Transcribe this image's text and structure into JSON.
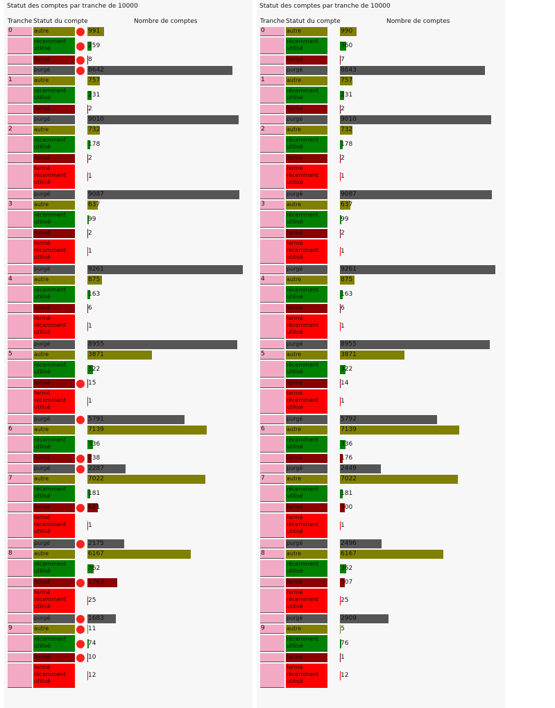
{
  "colors": {
    "autre": "#808000",
    "recemment_utilise": "#008000",
    "ferme": "#8b0000",
    "ferme_recemment_utilise": "#ff0000",
    "purge": "#555555",
    "tranche_cell": "#f2a9c4",
    "marker": "#ff2020"
  },
  "chart_data": [
    {
      "type": "bar",
      "title": "Statut des comptes par tranche de 10000",
      "columns": [
        "Tranche",
        "Statut du compte",
        "Nombre de comptes"
      ],
      "rows": [
        {
          "tranche": "0",
          "statut": "autre",
          "count": 991,
          "marked": true
        },
        {
          "tranche": "0",
          "statut": "récemment utilisé",
          "count": 259,
          "marked": true
        },
        {
          "tranche": "0",
          "statut": "fermé",
          "count": 8,
          "marked": true
        },
        {
          "tranche": "0",
          "statut": "purgé",
          "count": 8642,
          "marked": true
        },
        {
          "tranche": "1",
          "statut": "autre",
          "count": 757
        },
        {
          "tranche": "1",
          "statut": "récemment utilisé",
          "count": 231
        },
        {
          "tranche": "1",
          "statut": "fermé",
          "count": 2
        },
        {
          "tranche": "1",
          "statut": "purgé",
          "count": 9010
        },
        {
          "tranche": "2",
          "statut": "autre",
          "count": 732
        },
        {
          "tranche": "2",
          "statut": "récemment utilisé",
          "count": 178
        },
        {
          "tranche": "2",
          "statut": "fermé",
          "count": 2
        },
        {
          "tranche": "2",
          "statut": "fermé récemment utilisé",
          "count": 1
        },
        {
          "tranche": "2",
          "statut": "purgé",
          "count": 9087
        },
        {
          "tranche": "3",
          "statut": "autre",
          "count": 637
        },
        {
          "tranche": "3",
          "statut": "récemment utilisé",
          "count": 99
        },
        {
          "tranche": "3",
          "statut": "fermé",
          "count": 2
        },
        {
          "tranche": "3",
          "statut": "fermé récemment utilisé",
          "count": 1
        },
        {
          "tranche": "3",
          "statut": "purgé",
          "count": 9261
        },
        {
          "tranche": "4",
          "statut": "autre",
          "count": 875
        },
        {
          "tranche": "4",
          "statut": "récemment utilisé",
          "count": 163
        },
        {
          "tranche": "4",
          "statut": "fermé",
          "count": 6
        },
        {
          "tranche": "4",
          "statut": "fermé récemment utilisé",
          "count": 1
        },
        {
          "tranche": "4",
          "statut": "purgé",
          "count": 8955
        },
        {
          "tranche": "5",
          "statut": "autre",
          "count": 3871
        },
        {
          "tranche": "5",
          "statut": "récemment utilisé",
          "count": 322
        },
        {
          "tranche": "5",
          "statut": "fermé",
          "count": 15,
          "marked": true
        },
        {
          "tranche": "5",
          "statut": "fermé récemment utilisé",
          "count": 1
        },
        {
          "tranche": "5",
          "statut": "purgé",
          "count": 5791,
          "marked": true
        },
        {
          "tranche": "6",
          "statut": "autre",
          "count": 7139
        },
        {
          "tranche": "6",
          "statut": "récemment utilisé",
          "count": 336
        },
        {
          "tranche": "6",
          "statut": "fermé",
          "count": 238,
          "marked": true
        },
        {
          "tranche": "6",
          "statut": "purgé",
          "count": 2287,
          "marked": true
        },
        {
          "tranche": "7",
          "statut": "autre",
          "count": 7022
        },
        {
          "tranche": "7",
          "statut": "récemment utilisé",
          "count": 181
        },
        {
          "tranche": "7",
          "statut": "fermé",
          "count": 621,
          "marked": true
        },
        {
          "tranche": "7",
          "statut": "fermé récemment utilisé",
          "count": 1
        },
        {
          "tranche": "7",
          "statut": "purgé",
          "count": 2175,
          "marked": true
        },
        {
          "tranche": "8",
          "statut": "autre",
          "count": 6167
        },
        {
          "tranche": "8",
          "statut": "récemment utilisé",
          "count": 362
        },
        {
          "tranche": "8",
          "statut": "fermé",
          "count": 1763,
          "marked": true
        },
        {
          "tranche": "8",
          "statut": "fermé récemment utilisé",
          "count": 25
        },
        {
          "tranche": "8",
          "statut": "purgé",
          "count": 1683,
          "marked": true
        },
        {
          "tranche": "9",
          "statut": "autre",
          "count": 11,
          "marked": true
        },
        {
          "tranche": "9",
          "statut": "récemment utilisé",
          "count": 74,
          "marked": true
        },
        {
          "tranche": "9",
          "statut": "fermé",
          "count": 10,
          "marked": true
        },
        {
          "tranche": "9",
          "statut": "fermé récemment utilisé",
          "count": 12
        }
      ]
    },
    {
      "type": "bar",
      "title": "Statut des comptes par tranche de 10000",
      "columns": [
        "Tranche",
        "Statut du compte",
        "Nombre de comptes"
      ],
      "rows": [
        {
          "tranche": "0",
          "statut": "autre",
          "count": 990
        },
        {
          "tranche": "0",
          "statut": "récemment utilisé",
          "count": 360
        },
        {
          "tranche": "0",
          "statut": "fermé",
          "count": 7
        },
        {
          "tranche": "0",
          "statut": "purgé",
          "count": 8643
        },
        {
          "tranche": "1",
          "statut": "autre",
          "count": 757
        },
        {
          "tranche": "1",
          "statut": "récemment utilisé",
          "count": 231
        },
        {
          "tranche": "1",
          "statut": "fermé",
          "count": 2
        },
        {
          "tranche": "1",
          "statut": "purgé",
          "count": 9010
        },
        {
          "tranche": "2",
          "statut": "autre",
          "count": 732
        },
        {
          "tranche": "2",
          "statut": "récemment utilisé",
          "count": 178
        },
        {
          "tranche": "2",
          "statut": "fermé",
          "count": 2
        },
        {
          "tranche": "2",
          "statut": "fermé récemment utilisé",
          "count": 1
        },
        {
          "tranche": "2",
          "statut": "purgé",
          "count": 9087
        },
        {
          "tranche": "3",
          "statut": "autre",
          "count": 637
        },
        {
          "tranche": "3",
          "statut": "récemment utilisé",
          "count": 99
        },
        {
          "tranche": "3",
          "statut": "fermé",
          "count": 2
        },
        {
          "tranche": "3",
          "statut": "fermé récemment utilisé",
          "count": 1
        },
        {
          "tranche": "3",
          "statut": "purgé",
          "count": 9261
        },
        {
          "tranche": "4",
          "statut": "autre",
          "count": 875
        },
        {
          "tranche": "4",
          "statut": "récemment utilisé",
          "count": 163
        },
        {
          "tranche": "4",
          "statut": "fermé",
          "count": 6
        },
        {
          "tranche": "4",
          "statut": "fermé récemment utilisé",
          "count": 1
        },
        {
          "tranche": "4",
          "statut": "purgé",
          "count": 8955
        },
        {
          "tranche": "5",
          "statut": "autre",
          "count": 3871
        },
        {
          "tranche": "5",
          "statut": "récemment utilisé",
          "count": 322
        },
        {
          "tranche": "5",
          "statut": "fermé",
          "count": 14
        },
        {
          "tranche": "5",
          "statut": "fermé récemment utilisé",
          "count": 1
        },
        {
          "tranche": "5",
          "statut": "purgé",
          "count": 5792
        },
        {
          "tranche": "6",
          "statut": "autre",
          "count": 7139
        },
        {
          "tranche": "6",
          "statut": "récemment utilisé",
          "count": 336
        },
        {
          "tranche": "6",
          "statut": "fermé",
          "count": 176
        },
        {
          "tranche": "6",
          "statut": "purgé",
          "count": 2449
        },
        {
          "tranche": "7",
          "statut": "autre",
          "count": 7022
        },
        {
          "tranche": "7",
          "statut": "récemment utilisé",
          "count": 181
        },
        {
          "tranche": "7",
          "statut": "fermé",
          "count": 300
        },
        {
          "tranche": "7",
          "statut": "fermé récemment utilisé",
          "count": 1
        },
        {
          "tranche": "7",
          "statut": "purgé",
          "count": 2496
        },
        {
          "tranche": "8",
          "statut": "autre",
          "count": 6167
        },
        {
          "tranche": "8",
          "statut": "récemment utilisé",
          "count": 362
        },
        {
          "tranche": "8",
          "statut": "fermé",
          "count": 307
        },
        {
          "tranche": "8",
          "statut": "fermé récemment utilisé",
          "count": 25
        },
        {
          "tranche": "8",
          "statut": "purgé",
          "count": 2909
        },
        {
          "tranche": "9",
          "statut": "autre",
          "count": 5
        },
        {
          "tranche": "9",
          "statut": "récemment utilisé",
          "count": 76
        },
        {
          "tranche": "9",
          "statut": "fermé",
          "count": 1
        },
        {
          "tranche": "9",
          "statut": "fermé récemment utilisé",
          "count": 12
        }
      ]
    }
  ]
}
